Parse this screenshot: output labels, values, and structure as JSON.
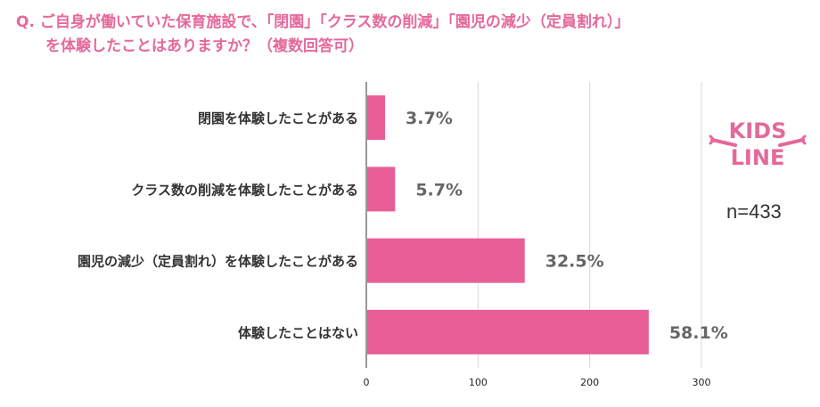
{
  "question": {
    "prefix": "Q.",
    "line1": "ご自身が働いていた保育施設で、「閉園」「クラス数の削減」「園児の減少（定員割れ）」",
    "line2": "を体験したことはありますか？（複数回答可）"
  },
  "sample_size": "n=433",
  "logo": {
    "line1": "KIDS",
    "line2": "LINE",
    "color": "#e5689a"
  },
  "colors": {
    "accent": "#e5689a",
    "bar": "#e85e96",
    "grid": "#d9d9d9",
    "text": "#333333",
    "value": "#666666"
  },
  "chart_data": {
    "type": "bar",
    "orientation": "horizontal",
    "categories": [
      "閉園を体験したことがある",
      "クラス数の削減を体験したことがある",
      "園児の減少（定員割れ）を体験したことがある",
      "体験したことはない"
    ],
    "values": [
      16,
      25,
      141,
      252
    ],
    "data_labels": [
      "3.7%",
      "5.7%",
      "32.5%",
      "58.1%"
    ],
    "xlim": [
      0,
      300
    ],
    "xticks": [
      0,
      100,
      200,
      300
    ],
    "grid": true,
    "legend": "none"
  }
}
